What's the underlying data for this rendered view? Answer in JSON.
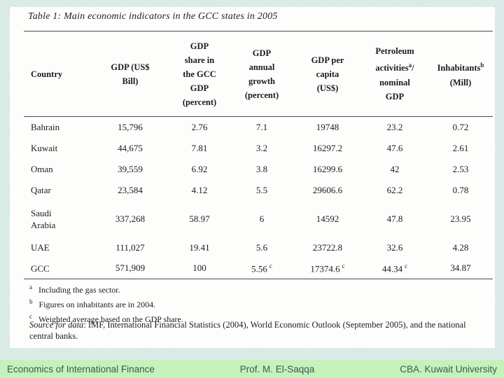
{
  "slide": {
    "title": "Table 1: Main economic indicators in the GCC states in 2005"
  },
  "table": {
    "headers": [
      {
        "l1": "Country"
      },
      {
        "l1": "GDP (US$",
        "l2": "Bill)"
      },
      {
        "l1": "GDP",
        "l2": "share in",
        "l3": "the GCC",
        "l4": "GDP",
        "l5": "(percent)"
      },
      {
        "l1": "GDP",
        "l2": "annual",
        "l3": "growth",
        "l4": "(percent)"
      },
      {
        "l1": "GDP per",
        "l2": "capita",
        "l3": "(US$)"
      },
      {
        "l1": "Petroleum",
        "l2pre": "activities",
        "l2sup": "a",
        "l2post": "/",
        "l3": "nominal",
        "l4": "GDP"
      },
      {
        "l1pre": "Inhabitants",
        "l1sup": "b",
        "l2": "(Mill)"
      }
    ],
    "rows": [
      {
        "country": "Bahrain",
        "gdp": "15,796",
        "share": "2.76",
        "growth": "7.1",
        "capita": "19748",
        "petroleum": "23.2",
        "inhabitants": "0.72"
      },
      {
        "country": "Kuwait",
        "gdp": "44,675",
        "share": "7.81",
        "growth": "3.2",
        "capita": "16297.2",
        "petroleum": "47.6",
        "inhabitants": "2.61"
      },
      {
        "country": "Oman",
        "gdp": "39,559",
        "share": "6.92",
        "growth": "3.8",
        "capita": "16299.6",
        "petroleum": "42",
        "inhabitants": "2.53"
      },
      {
        "country": "Qatar",
        "gdp": "23,584",
        "share": "4.12",
        "growth": "5.5",
        "capita": "29606.6",
        "petroleum": "62.2",
        "inhabitants": "0.78"
      },
      {
        "country": "Saudi\nArabia",
        "tall": true,
        "gdp": "337,268",
        "share": "58.97",
        "growth": "6",
        "capita": "14592",
        "petroleum": "47.8",
        "inhabitants": "23.95"
      },
      {
        "country": "UAE",
        "gdp": "111,027",
        "share": "19.41",
        "growth": "5.6",
        "capita": "23722.8",
        "petroleum": "32.6",
        "inhabitants": "4.28"
      },
      {
        "country": "GCC",
        "gdp": "571,909",
        "share": "100",
        "growth": "5.56",
        "growth_sup": "c",
        "capita": "17374.6",
        "capita_sup": "c",
        "petroleum": "44.34",
        "petroleum_sup": "c",
        "inhabitants": "34.87"
      }
    ]
  },
  "footnotes": [
    {
      "marker": "a",
      "text": "Including the gas sector."
    },
    {
      "marker": "b",
      "text": "Figures on inhabitants are in 2004."
    },
    {
      "marker": "c",
      "text": "Weighted average based on the GDP share."
    }
  ],
  "source": {
    "lead": "Source for data",
    "text": ": IMF, International Financial Statistics (2004), World Economic Outlook (September 2005), and the national central banks."
  },
  "footer": {
    "left": "Economics of International Finance",
    "center": "Prof. M. El-Saqqa",
    "right": "CBA. Kuwait University"
  },
  "colors": {
    "slide_background": "#d7eae5",
    "panel_background": "#fdfdfc",
    "rule": "#4a4a4a",
    "footer_band": "#c3f3bb",
    "footer_text": "#44544f"
  }
}
